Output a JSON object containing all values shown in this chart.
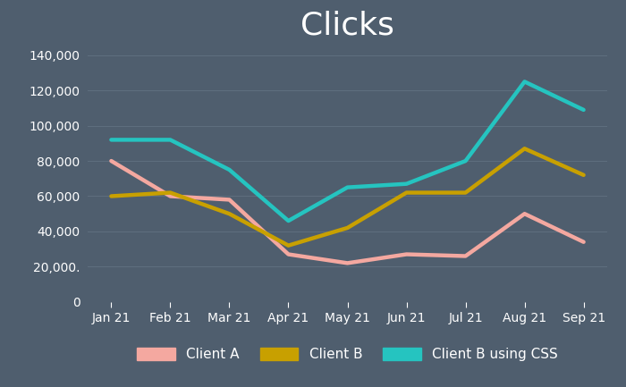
{
  "title": "Clicks",
  "background_color": "#4f5e6e",
  "plot_background_color": "#4f5e6e",
  "grid_color": "#5e6e7e",
  "text_color": "#ffffff",
  "x_labels": [
    "Jan 21",
    "Feb 21",
    "Mar 21",
    "Apr 21",
    "May 21",
    "Jun 21",
    "Jul 21",
    "Aug 21",
    "Sep 21"
  ],
  "series": [
    {
      "label": "Client A",
      "color": "#f4a8a0",
      "values": [
        80000,
        60000,
        58000,
        27000,
        22000,
        27000,
        26000,
        50000,
        34000
      ]
    },
    {
      "label": "Client B",
      "color": "#c8a000",
      "values": [
        60000,
        62000,
        50000,
        32000,
        42000,
        62000,
        62000,
        87000,
        72000
      ]
    },
    {
      "label": "Client B using CSS",
      "color": "#25c4c0",
      "values": [
        92000,
        92000,
        75000,
        46000,
        65000,
        67000,
        80000,
        125000,
        109000
      ]
    }
  ],
  "ylim": [
    0,
    145000
  ],
  "yticks": [
    0,
    20000,
    40000,
    60000,
    80000,
    100000,
    120000,
    140000
  ],
  "ytick_labels": [
    "0",
    "20,000.",
    "40,000",
    "60,000",
    "80,000",
    "100,000",
    "120,000",
    "140,000"
  ],
  "title_fontsize": 26,
  "axis_fontsize": 10,
  "legend_fontsize": 11,
  "line_width": 3.2
}
